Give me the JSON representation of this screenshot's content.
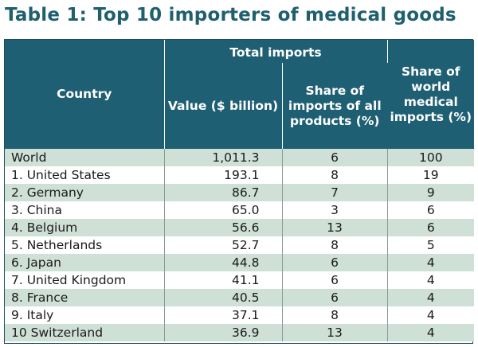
{
  "title": "Table 1: Top 10 importers of medical goods",
  "headers": {
    "country": "Country",
    "total_imports": "Total imports",
    "value": "Value ($ billion)",
    "share_all": "Share of imports of all products (%)",
    "share_world": "Share of world medical imports (%)"
  },
  "rows": [
    {
      "country": "World",
      "value": "1,011.3",
      "share_all": "6",
      "share_world": "100"
    },
    {
      "country": "1. United States",
      "value": "193.1",
      "share_all": "8",
      "share_world": "19"
    },
    {
      "country": "2. Germany",
      "value": "86.7",
      "share_all": "7",
      "share_world": "9"
    },
    {
      "country": "3. China",
      "value": "65.0",
      "share_all": "3",
      "share_world": "6"
    },
    {
      "country": "4. Belgium",
      "value": "56.6",
      "share_all": "13",
      "share_world": "6"
    },
    {
      "country": "5. Netherlands",
      "value": "52.7",
      "share_all": "8",
      "share_world": "5"
    },
    {
      "country": "6. Japan",
      "value": "44.8",
      "share_all": "6",
      "share_world": "4"
    },
    {
      "country": "7. United Kingdom",
      "value": "41.1",
      "share_all": "6",
      "share_world": "4"
    },
    {
      "country": "8. France",
      "value": "40.5",
      "share_all": "6",
      "share_world": "4"
    },
    {
      "country": "9. Italy",
      "value": "37.1",
      "share_all": "8",
      "share_world": "4"
    },
    {
      "country": "10 Switzerland",
      "value": "36.9",
      "share_all": "13",
      "share_world": "4"
    }
  ],
  "colors": {
    "title": "#1f5f6e",
    "header_bg": "#1f5f73",
    "row_band": "#cfe0d6"
  }
}
